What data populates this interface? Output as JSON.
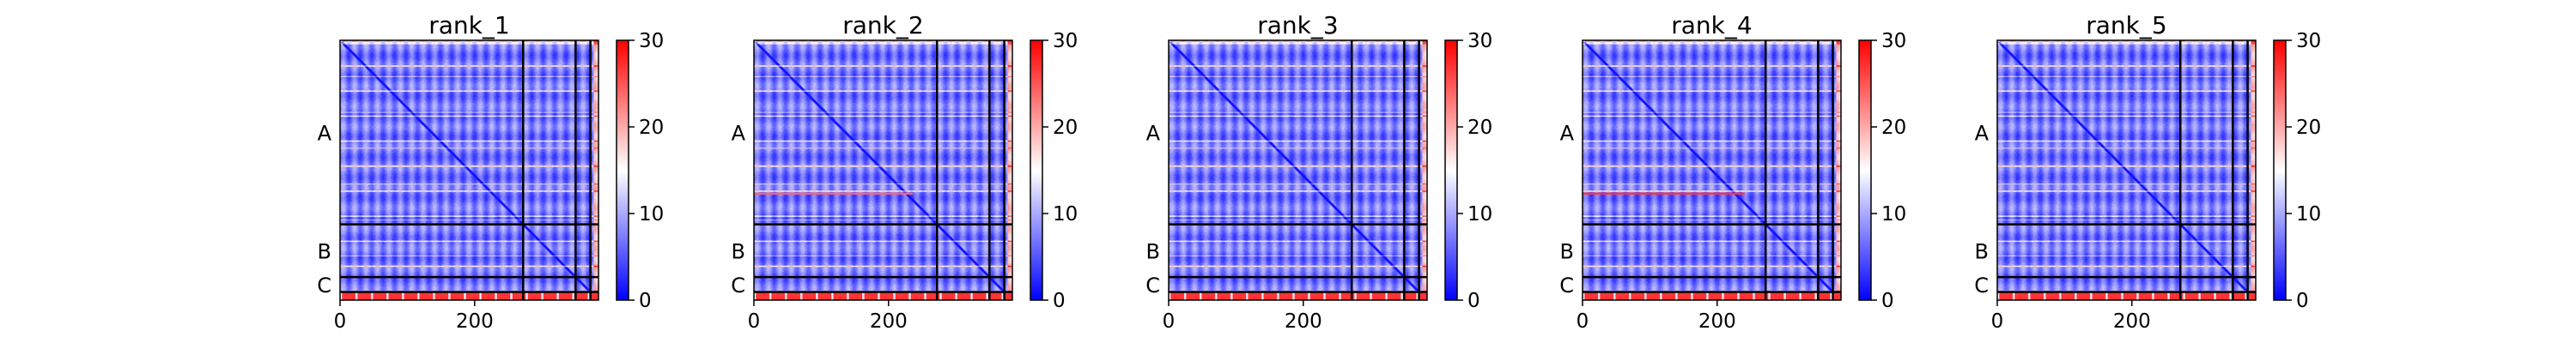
{
  "chart_data": {
    "type": "heatmap",
    "colormap": "bwr",
    "colors": {
      "low": "#0000ff",
      "mid": "#ffffff",
      "high": "#ff0000"
    },
    "zlim": [
      0,
      30
    ],
    "colorbar_ticks": [
      "0",
      "10",
      "20",
      "30"
    ],
    "x_ticks": [
      {
        "value": 0,
        "label": "0"
      },
      {
        "value": 200,
        "label": "200"
      }
    ],
    "xlim": [
      0,
      384
    ],
    "ylim": [
      384,
      0
    ],
    "chain_boundaries": [
      272,
      350,
      372
    ],
    "chain_labels": [
      {
        "label": "A",
        "center": 136
      },
      {
        "label": "B",
        "center": 311
      },
      {
        "label": "C",
        "center": 361
      }
    ],
    "panels": [
      {
        "title": "rank_1",
        "high_stripe": null
      },
      {
        "title": "rank_2",
        "high_stripe": {
          "row": 226,
          "start": 0,
          "end": 235,
          "value": 24
        }
      },
      {
        "title": "rank_3",
        "high_stripe": null
      },
      {
        "title": "rank_4",
        "high_stripe": {
          "row": 226,
          "start": 0,
          "end": 240,
          "value": 27
        }
      },
      {
        "title": "rank_5",
        "high_stripe": null
      }
    ]
  }
}
